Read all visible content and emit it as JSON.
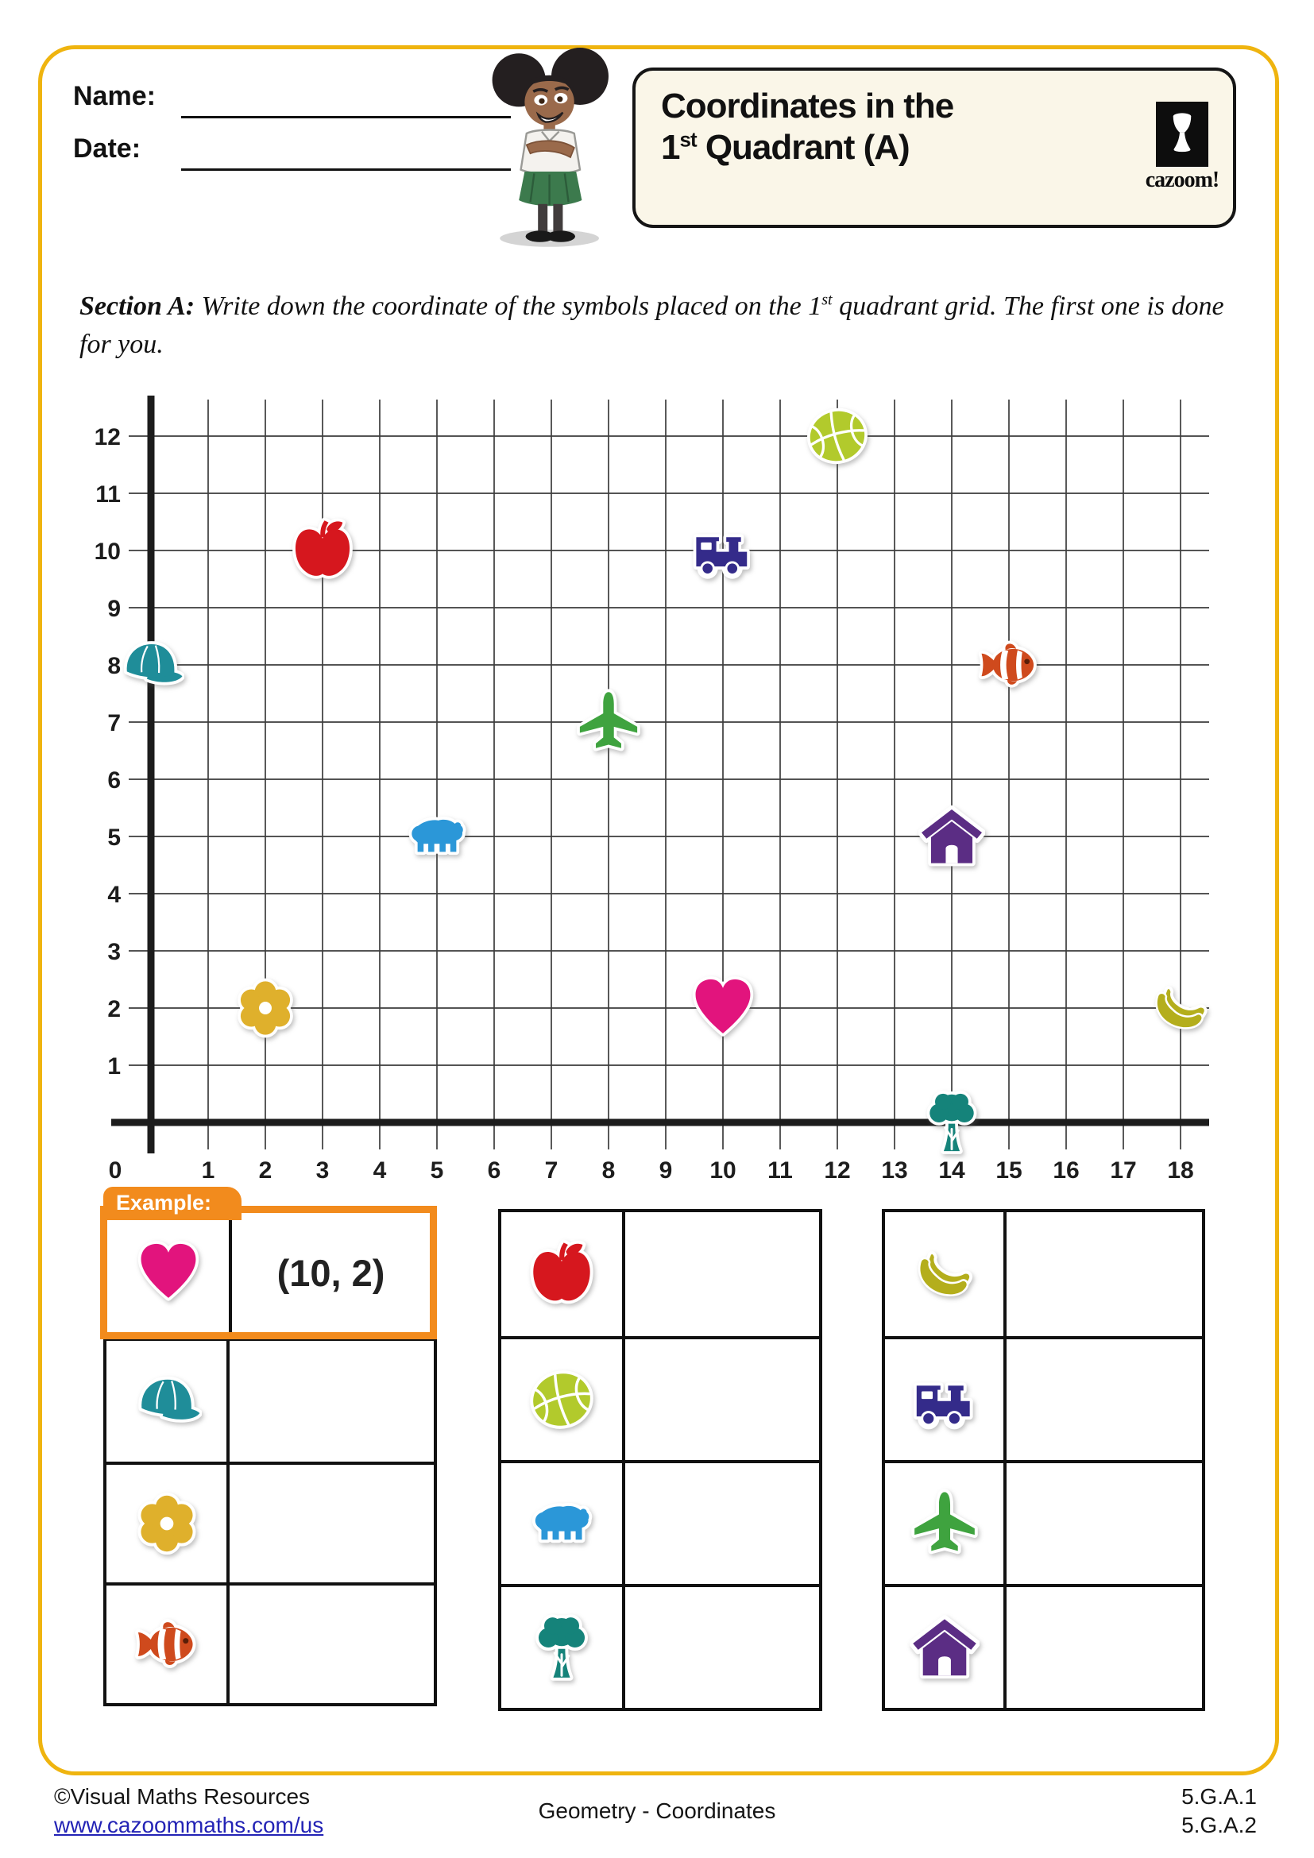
{
  "header": {
    "name_label": "Name:",
    "date_label": "Date:",
    "title_line1": "Coordinates in the",
    "title_line2_num": "1",
    "title_line2_sup": "st",
    "title_line2_rest": " Quadrant (A)",
    "logo_text": "cazoom!"
  },
  "section_a": {
    "label": "Section A:",
    "instruction_pre": " Write down the coordinate of the symbols placed on the 1",
    "instruction_sup": "st",
    "instruction_post": " quadrant grid. The first one is done for you."
  },
  "chart_data": {
    "type": "scatter",
    "title": "",
    "xlabel": "",
    "ylabel": "",
    "x_range": [
      0,
      18
    ],
    "y_range": [
      0,
      12
    ],
    "x_ticks": [
      0,
      1,
      2,
      3,
      4,
      5,
      6,
      7,
      8,
      9,
      10,
      11,
      12,
      13,
      14,
      15,
      16,
      17,
      18
    ],
    "y_ticks": [
      0,
      1,
      2,
      3,
      4,
      5,
      6,
      7,
      8,
      9,
      10,
      11,
      12
    ],
    "grid": true,
    "origin_label": "0",
    "points": [
      {
        "symbol": "cap",
        "x": 0,
        "y": 8
      },
      {
        "symbol": "flower",
        "x": 2,
        "y": 2
      },
      {
        "symbol": "apple",
        "x": 3,
        "y": 10
      },
      {
        "symbol": "bear",
        "x": 5,
        "y": 5
      },
      {
        "symbol": "airplane",
        "x": 8,
        "y": 7
      },
      {
        "symbol": "train",
        "x": 10,
        "y": 10
      },
      {
        "symbol": "heart",
        "x": 10,
        "y": 2
      },
      {
        "symbol": "basketball",
        "x": 12,
        "y": 12
      },
      {
        "symbol": "house",
        "x": 14,
        "y": 5
      },
      {
        "symbol": "tree",
        "x": 14,
        "y": 0
      },
      {
        "symbol": "clownfish",
        "x": 15,
        "y": 8
      },
      {
        "symbol": "bananas",
        "x": 18,
        "y": 2
      }
    ]
  },
  "symbol_colors": {
    "heart": "#e2147d",
    "cap": "#1f8d99",
    "flower": "#dfb02c",
    "clownfish": "#cf4a1d",
    "apple": "#d6171e",
    "basketball": "#b2ca2c",
    "bear": "#2b97d8",
    "tree": "#15837a",
    "bananas": "#b4ae1c",
    "train": "#342b8a",
    "airplane": "#3fa33f",
    "house": "#5b2d84"
  },
  "example": {
    "tab_label": "Example:",
    "symbol": "heart",
    "answer": "(10, 2)"
  },
  "answer_tables": [
    {
      "rows": [
        {
          "symbol": "cap",
          "answer": ""
        },
        {
          "symbol": "flower",
          "answer": ""
        },
        {
          "symbol": "clownfish",
          "answer": ""
        }
      ]
    },
    {
      "rows": [
        {
          "symbol": "apple",
          "answer": ""
        },
        {
          "symbol": "basketball",
          "answer": ""
        },
        {
          "symbol": "bear",
          "answer": ""
        },
        {
          "symbol": "tree",
          "answer": ""
        }
      ]
    },
    {
      "rows": [
        {
          "symbol": "bananas",
          "answer": ""
        },
        {
          "symbol": "train",
          "answer": ""
        },
        {
          "symbol": "airplane",
          "answer": ""
        },
        {
          "symbol": "house",
          "answer": ""
        }
      ]
    }
  ],
  "footer": {
    "copyright": "©Visual Maths Resources",
    "url": "www.cazoommaths.com/us",
    "center_label": "Geometry - Coordinates",
    "standard_1": "5.G.A.1",
    "standard_2": "5.G.A.2"
  },
  "colors": {
    "page_border": "#efb40f",
    "example_orange": "#f28b1d",
    "title_box_bg": "#faf6e8",
    "link_blue": "#2323b5"
  }
}
